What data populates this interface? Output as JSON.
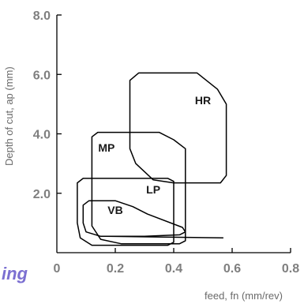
{
  "chart_data": {
    "type": "area",
    "title": "",
    "xlabel": "feed, fn (mm/rev)",
    "ylabel": "Depth of cut, ap (mm)",
    "xlim": [
      0,
      0.8
    ],
    "ylim": [
      0,
      8.0
    ],
    "xticks": [
      "0",
      "0.2",
      "0.4",
      "0.6",
      "0.8"
    ],
    "yticks": [
      "2.0",
      "4.0",
      "6.0",
      "8.0"
    ],
    "grid": false,
    "regions": [
      {
        "name": "HR",
        "color": "#000000",
        "points": [
          [
            0.25,
            5.8
          ],
          [
            0.28,
            6.05
          ],
          [
            0.48,
            6.05
          ],
          [
            0.55,
            5.5
          ],
          [
            0.58,
            5.0
          ],
          [
            0.58,
            2.6
          ],
          [
            0.56,
            2.35
          ],
          [
            0.4,
            2.35
          ],
          [
            0.33,
            2.45
          ],
          [
            0.27,
            3.0
          ],
          [
            0.25,
            3.5
          ]
        ]
      },
      {
        "name": "MP",
        "color": "#000000",
        "points": [
          [
            0.12,
            3.9
          ],
          [
            0.14,
            4.05
          ],
          [
            0.35,
            4.05
          ],
          [
            0.4,
            3.8
          ],
          [
            0.44,
            3.5
          ],
          [
            0.44,
            0.4
          ],
          [
            0.42,
            0.3
          ],
          [
            0.22,
            0.3
          ],
          [
            0.15,
            0.45
          ],
          [
            0.12,
            0.9
          ]
        ]
      },
      {
        "name": "LP",
        "color": "#000000",
        "points": [
          [
            0.07,
            2.35
          ],
          [
            0.09,
            2.5
          ],
          [
            0.38,
            2.5
          ],
          [
            0.4,
            2.4
          ],
          [
            0.4,
            0.35
          ],
          [
            0.38,
            0.25
          ],
          [
            0.12,
            0.25
          ],
          [
            0.08,
            0.5
          ],
          [
            0.07,
            1.0
          ]
        ]
      },
      {
        "name": "VB",
        "color": "#000000",
        "points": [
          [
            0.09,
            1.6
          ],
          [
            0.11,
            1.75
          ],
          [
            0.2,
            1.75
          ],
          [
            0.26,
            1.55
          ],
          [
            0.31,
            1.3
          ],
          [
            0.43,
            0.85
          ],
          [
            0.44,
            0.7
          ],
          [
            0.42,
            0.6
          ],
          [
            0.3,
            0.55
          ],
          [
            0.15,
            0.55
          ],
          [
            0.1,
            0.7
          ],
          [
            0.09,
            1.0
          ]
        ]
      }
    ],
    "extra_lines": [
      [
        [
          0.17,
          0.55
        ],
        [
          0.57,
          0.5
        ]
      ]
    ],
    "region_labels": [
      {
        "text": "HR",
        "x": 0.5,
        "y": 5.0
      },
      {
        "text": "MP",
        "x": 0.17,
        "y": 3.4
      },
      {
        "text": "LP",
        "x": 0.33,
        "y": 2.0
      },
      {
        "text": "VB",
        "x": 0.2,
        "y": 1.3
      }
    ],
    "axis_color": "#000000"
  },
  "overlay_text": "ing"
}
